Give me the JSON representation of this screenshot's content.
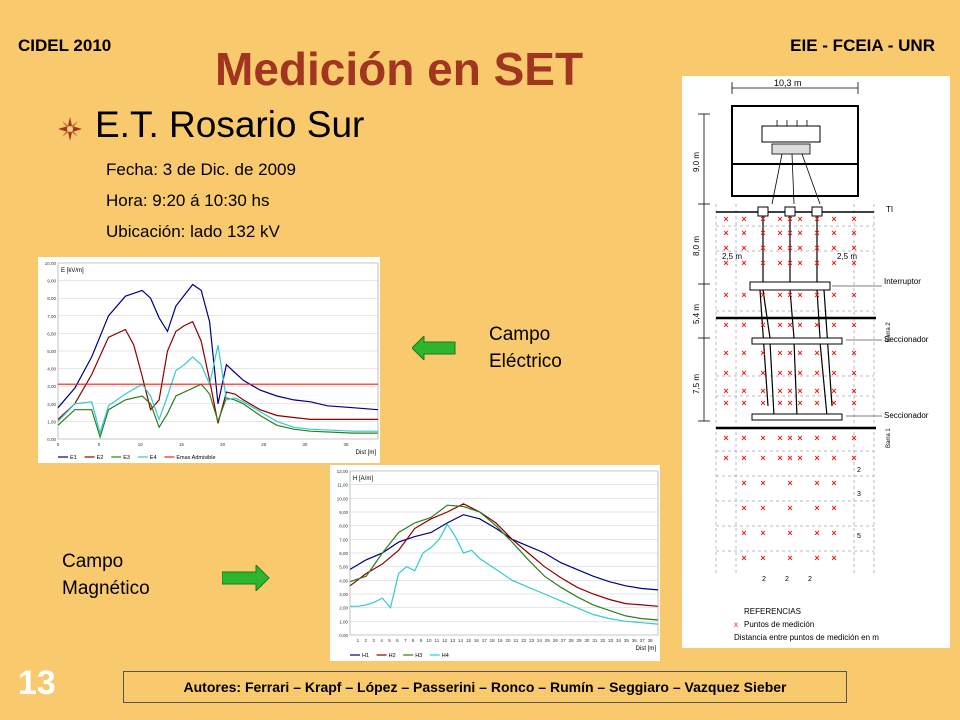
{
  "header": {
    "left": "CIDEL 2010",
    "right": "EIE - FCEIA - UNR"
  },
  "title": "Medición en SET",
  "subtitle": "E.T. Rosario Sur",
  "info": {
    "fecha": "Fecha: 3 de Dic. de 2009",
    "hora": "Hora: 9:20 á 10:30 hs",
    "ubicacion": "Ubicación: lado 132 kV"
  },
  "labels": {
    "electric": {
      "line1": "Campo",
      "line2": "Eléctrico"
    },
    "magnetic": {
      "line1": "Campo",
      "line2": "Magnético"
    }
  },
  "footer": "Autores: Ferrari – Krapf – López – Passerini – Ronco – Rumín – Seggiaro – Vazquez Sieber",
  "slide_number": "13",
  "colors": {
    "background": "#F9C96E",
    "title": "#A0361F",
    "arrow": "#2DB52D",
    "series": [
      "#000080",
      "#8B0000",
      "#2E7D1E",
      "#33CCCC",
      "#E8201A"
    ]
  },
  "diagram": {
    "width_label": "10,3 m",
    "dims": [
      "9,0 m",
      "8,0 m",
      "5,4 m",
      "7,5 m"
    ],
    "spacing": "2,5 m",
    "labels": {
      "ti": "TI",
      "interruptor": "Interruptor",
      "seccionador": "Seccionador",
      "barra2": "Barra 2",
      "barra1": "Barra 1"
    },
    "row_numbers": [
      "2",
      "3",
      "5"
    ],
    "bottom_numbers": [
      "2",
      "2",
      "2"
    ],
    "legend": {
      "title": "REFERENCIAS",
      "points": "Puntos de medición",
      "distance": "Distancia entre puntos de medición en m"
    }
  },
  "chart_data": [
    {
      "type": "line",
      "ylabel": "E [kV/m]",
      "xlabel": "Dist [m]",
      "yticks": [
        "0,00",
        "1,00",
        "2,00",
        "3,00",
        "4,00",
        "5,00",
        "6,00",
        "7,00",
        "8,00",
        "9,00",
        "10,00"
      ],
      "xticks": [
        "0",
        "5",
        "10",
        "15",
        "20",
        "25",
        "30",
        "35"
      ],
      "xlim": [
        0,
        38
      ],
      "ylim": [
        0,
        9
      ],
      "series": [
        {
          "name": "E1",
          "x": [
            0,
            2,
            4,
            6,
            8,
            10,
            11,
            12,
            13,
            14,
            16,
            17,
            18,
            19,
            20,
            21,
            22,
            24,
            26,
            28,
            30,
            32,
            35,
            38
          ],
          "y": [
            1.6,
            2.6,
            4.2,
            6.3,
            7.3,
            7.6,
            7.2,
            6.2,
            5.5,
            6.8,
            7.9,
            7.6,
            6.0,
            1.8,
            3.8,
            3.4,
            3.0,
            2.5,
            2.2,
            2.0,
            1.9,
            1.7,
            1.6,
            1.5
          ]
        },
        {
          "name": "E2",
          "x": [
            0,
            2,
            4,
            6,
            8,
            9,
            10,
            11,
            12,
            13,
            14,
            15,
            16,
            17,
            18,
            19,
            20,
            21,
            22,
            24,
            26,
            28,
            30,
            32,
            35,
            38
          ],
          "y": [
            1.0,
            1.8,
            3.3,
            5.2,
            5.6,
            4.8,
            3.2,
            1.5,
            2.0,
            4.5,
            5.5,
            5.8,
            6.0,
            5.0,
            3.0,
            0.8,
            2.4,
            2.3,
            2.0,
            1.5,
            1.2,
            1.1,
            1.0,
            1.0,
            1.0,
            1.0
          ]
        },
        {
          "name": "E3",
          "x": [
            0,
            2,
            4,
            5,
            6,
            8,
            10,
            11,
            12,
            13,
            14,
            15,
            16,
            17,
            18,
            19,
            20,
            21,
            22,
            24,
            26,
            28,
            30,
            35,
            38
          ],
          "y": [
            0.7,
            1.5,
            1.5,
            0.1,
            1.5,
            2.0,
            2.2,
            1.8,
            0.6,
            1.3,
            2.2,
            2.4,
            2.6,
            2.8,
            2.3,
            0.9,
            2.1,
            2.0,
            1.8,
            1.2,
            0.7,
            0.5,
            0.4,
            0.3,
            0.3
          ]
        },
        {
          "name": "E4",
          "x": [
            0,
            2,
            4,
            5,
            6,
            8,
            10,
            11,
            12,
            13,
            14,
            15,
            16,
            17,
            18,
            19,
            20,
            21,
            22,
            24,
            26,
            28,
            30,
            35,
            38
          ],
          "y": [
            0.9,
            1.8,
            1.9,
            0.3,
            1.7,
            2.3,
            2.8,
            2.2,
            1.0,
            2.2,
            3.5,
            3.8,
            4.2,
            3.8,
            2.8,
            4.8,
            2.0,
            2.1,
            1.9,
            1.4,
            0.9,
            0.6,
            0.5,
            0.4,
            0.4
          ]
        },
        {
          "name": "Emax Admisible",
          "x": [
            0,
            38
          ],
          "y": [
            2.8,
            2.8
          ]
        }
      ]
    },
    {
      "type": "line",
      "ylabel": "H [A/m]",
      "xlabel": "Dist [m]",
      "yticks": [
        "0,00",
        "1,00",
        "2,00",
        "3,00",
        "4,00",
        "5,00",
        "6,00",
        "7,00",
        "8,00",
        "9,00",
        "10,00",
        "11,00",
        "12,00"
      ],
      "xticks": [
        "1",
        "2",
        "3",
        "4",
        "5",
        "6",
        "7",
        "8",
        "9",
        "10",
        "11",
        "12",
        "13",
        "14",
        "15",
        "16",
        "17",
        "18",
        "19",
        "20",
        "21",
        "22",
        "23",
        "24",
        "25",
        "26",
        "27",
        "28",
        "29",
        "30",
        "31",
        "32",
        "33",
        "34",
        "35",
        "36",
        "37",
        "38"
      ],
      "xlim": [
        0,
        38
      ],
      "ylim": [
        0,
        12
      ],
      "series": [
        {
          "name": "H1",
          "x": [
            0,
            2,
            4,
            6,
            8,
            10,
            12,
            14,
            16,
            18,
            20,
            22,
            24,
            26,
            28,
            30,
            32,
            34,
            36,
            38
          ],
          "y": [
            4.8,
            5.5,
            6.0,
            6.8,
            7.2,
            7.5,
            8.2,
            8.8,
            8.5,
            7.8,
            7.0,
            6.5,
            6.0,
            5.3,
            4.8,
            4.3,
            3.9,
            3.6,
            3.4,
            3.3
          ]
        },
        {
          "name": "H2",
          "x": [
            0,
            2,
            4,
            6,
            8,
            10,
            12,
            14,
            16,
            18,
            20,
            22,
            24,
            26,
            28,
            30,
            32,
            34,
            36,
            38
          ],
          "y": [
            3.6,
            4.5,
            5.2,
            6.2,
            7.8,
            8.5,
            9.0,
            9.6,
            9.0,
            8.2,
            7.0,
            6.0,
            5.0,
            4.2,
            3.5,
            3.0,
            2.6,
            2.3,
            2.2,
            2.1
          ]
        },
        {
          "name": "H3",
          "x": [
            0,
            2,
            4,
            6,
            8,
            10,
            12,
            14,
            16,
            18,
            20,
            22,
            24,
            26,
            28,
            30,
            32,
            34,
            36,
            38
          ],
          "y": [
            3.9,
            4.3,
            6.0,
            7.5,
            8.2,
            8.6,
            9.5,
            9.4,
            9.0,
            8.0,
            6.8,
            5.5,
            4.3,
            3.5,
            2.8,
            2.2,
            1.8,
            1.4,
            1.2,
            1.1
          ]
        },
        {
          "name": "H4",
          "x": [
            0,
            1,
            2,
            3,
            4,
            5,
            6,
            7,
            8,
            9,
            10,
            11,
            12,
            13,
            14,
            15,
            16,
            17,
            18,
            20,
            22,
            24,
            26,
            28,
            30,
            32,
            34,
            36,
            38
          ],
          "y": [
            2.1,
            2.1,
            2.2,
            2.4,
            2.7,
            2.0,
            4.5,
            5.0,
            4.7,
            6.0,
            6.4,
            7.0,
            8.1,
            7.2,
            6.0,
            6.2,
            5.6,
            5.2,
            4.8,
            4.0,
            3.5,
            3.0,
            2.5,
            2.0,
            1.5,
            1.2,
            1.0,
            0.9,
            0.8
          ]
        }
      ]
    }
  ]
}
